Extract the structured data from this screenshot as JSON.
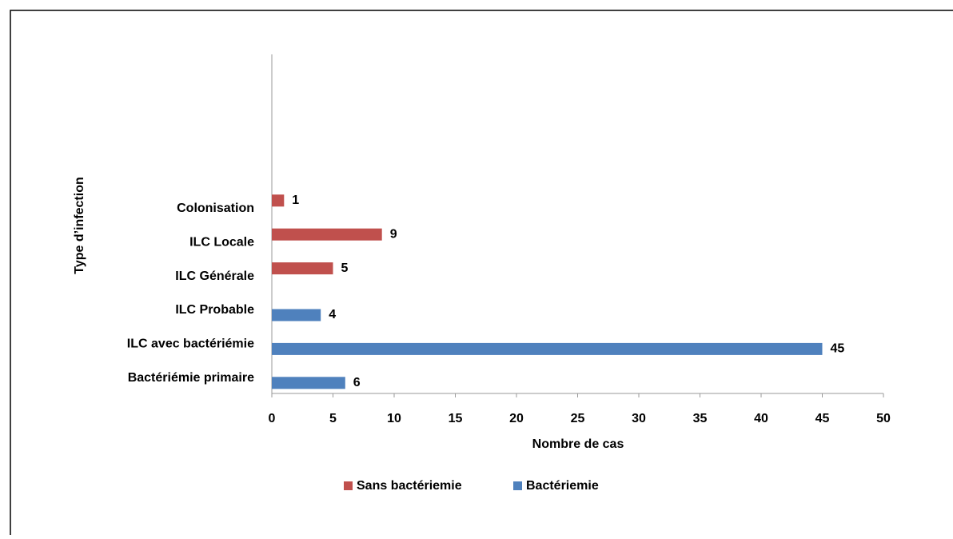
{
  "chart_data": {
    "type": "bar",
    "orientation": "horizontal",
    "x_label": "Nombre de cas",
    "y_label": "Type d’infection",
    "categories": [
      "Bactériémie primaire",
      "ILC avec bactériémie",
      "ILC Probable",
      "ILC Générale",
      "ILC Locale",
      "Colonisation",
      null,
      null,
      null,
      null
    ],
    "series": [
      {
        "name": "Sans bactériemie",
        "color": "#c0504d",
        "values": [
          null,
          null,
          null,
          5,
          9,
          1,
          null,
          null,
          null,
          null
        ]
      },
      {
        "name": "Bactériemie",
        "color": "#4f81bd",
        "values": [
          6,
          45,
          4,
          null,
          null,
          null,
          null,
          null,
          null,
          null
        ]
      }
    ],
    "xlim": [
      0,
      50
    ],
    "xticks": [
      0,
      5,
      10,
      15,
      20,
      25,
      30,
      35,
      40,
      45,
      50
    ],
    "legend": "bottom",
    "grid": false
  }
}
